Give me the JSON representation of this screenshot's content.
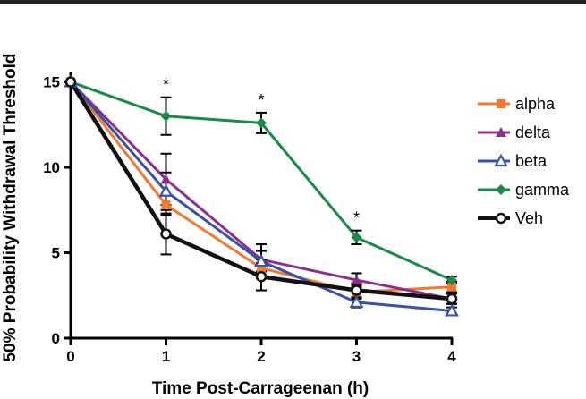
{
  "chart_data": {
    "type": "line",
    "title": "",
    "xlabel": "Time Post-Carrageenan (h)",
    "ylabel": "50% Probability Withdrawal Threshold",
    "x": [
      0,
      1,
      2,
      3,
      4
    ],
    "xticks": [
      "0",
      "1",
      "2",
      "3",
      "4"
    ],
    "yticks": [
      "0",
      "5",
      "10",
      "15"
    ],
    "xlim": [
      0,
      4
    ],
    "ylim": [
      0,
      15.5
    ],
    "legend_position": "right",
    "grid": false,
    "significance_markers": [
      {
        "x": 1,
        "label": "*"
      },
      {
        "x": 2,
        "label": "*"
      },
      {
        "x": 3,
        "label": "*"
      }
    ],
    "series": [
      {
        "name": "alpha",
        "color": "#f07a32",
        "marker": "square",
        "values": [
          15.0,
          7.8,
          4.1,
          2.7,
          3.0
        ],
        "errors": [
          0.0,
          0.6,
          0.5,
          0.4,
          0.3
        ]
      },
      {
        "name": "delta",
        "color": "#8b2f8e",
        "marker": "triangle",
        "values": [
          15.0,
          9.3,
          4.6,
          3.4,
          2.3
        ],
        "errors": [
          0.0,
          1.5,
          0.9,
          0.4,
          0.3
        ]
      },
      {
        "name": "beta",
        "color": "#3a52a3",
        "marker": "triangle-open",
        "values": [
          15.0,
          8.6,
          4.5,
          2.1,
          1.6
        ],
        "errors": [
          0.0,
          1.1,
          0.6,
          0.3,
          0.2
        ]
      },
      {
        "name": "gamma",
        "color": "#1a8a4a",
        "marker": "diamond",
        "values": [
          15.0,
          13.0,
          12.6,
          5.9,
          3.4
        ],
        "errors": [
          0.0,
          1.1,
          0.6,
          0.4,
          0.2
        ]
      },
      {
        "name": "Veh",
        "color": "#111111",
        "marker": "circle-open",
        "values": [
          15.0,
          6.1,
          3.6,
          2.8,
          2.3
        ],
        "errors": [
          0.0,
          1.2,
          0.8,
          0.4,
          0.3
        ]
      }
    ]
  }
}
